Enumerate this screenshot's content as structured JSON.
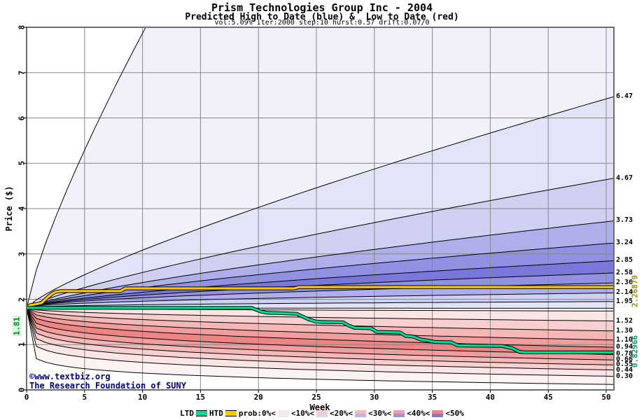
{
  "title": {
    "line1": "Prism Technologies Group Inc - 2004",
    "line2": "Predicted High to Date (blue) &  Low to Date (red)",
    "line3": "vol:5.09% iter:2000 step:10 hurst:0.57 drift:0.07/0"
  },
  "x_axis": {
    "label": "Week",
    "ticks": [
      "0",
      "5",
      "10",
      "15",
      "20",
      "25",
      "30",
      "35",
      "40",
      "45",
      "50"
    ],
    "min": 0,
    "max": 50
  },
  "y_axis": {
    "label": "Price ($)",
    "ticks": [
      "0",
      "1",
      "2",
      "3",
      "4",
      "5",
      "6",
      "7",
      "8"
    ],
    "min": 0,
    "max": 8
  },
  "annotations": {
    "start_price": "1.81",
    "htd_final": "2.26879",
    "ltd_final": "0.82966"
  },
  "footer": {
    "line1": "©www.textbiz.org",
    "line2": "The Research Foundation of SUNY"
  },
  "legend": {
    "ltd": "LTD",
    "htd": "HTD",
    "prob_labels": [
      "prob:0%<",
      "<10%<",
      "<20%<",
      "<30%<",
      "<40%<",
      "<50%"
    ],
    "swatch_colors": [
      {
        "red": "#fbe8e8",
        "blue": "#ebebf9"
      },
      {
        "red": "#f8d2d2",
        "blue": "#d6d6f4"
      },
      {
        "red": "#f5baba",
        "blue": "#b6b6ee"
      },
      {
        "red": "#f1a0a0",
        "blue": "#9696e4"
      },
      {
        "red": "#ee8686",
        "blue": "#7a7adc"
      }
    ]
  },
  "colors": {
    "htd_line": "#ffc800",
    "ltd_line": "#00dc96",
    "htd_label": "#a08c00",
    "ltd_label": "#009a64",
    "start_label": "#007c3c",
    "start_label_bg": "#d8f6d8",
    "grid": "#878787",
    "frame": "#6e6e6e",
    "boundary": "#000000",
    "footer_color": "#000080"
  },
  "chart_data": {
    "type": "area",
    "description": "Monte Carlo fan chart: percentile bands of predicted high-to-date (blue, above start) and low-to-date (red, below start) with actual HTD (yellow) and LTD (green) step lines",
    "start_price": 1.81,
    "x_range_weeks": [
      0,
      50
    ],
    "y_range_price": [
      0,
      8
    ],
    "upper_boundaries": [
      {
        "final": 24.0,
        "exp": 0.8,
        "label": ""
      },
      {
        "final": 6.47,
        "exp": 0.8,
        "label": "6.47"
      },
      {
        "final": 4.67,
        "exp": 0.8,
        "label": "4.67"
      },
      {
        "final": 3.73,
        "exp": 0.76,
        "label": "3.73"
      },
      {
        "final": 3.24,
        "exp": 0.72,
        "label": "3.24"
      },
      {
        "final": 2.85,
        "exp": 0.68,
        "label": "2.85"
      },
      {
        "final": 2.58,
        "exp": 0.62,
        "label": "2.58"
      },
      {
        "final": 2.36,
        "exp": 0.56,
        "label": "2.36"
      },
      {
        "final": 2.14,
        "exp": 0.5,
        "label": "2.14"
      },
      {
        "final": 1.95,
        "exp": 0.44,
        "label": "1.95"
      },
      {
        "final": 1.8,
        "exp": 0.4,
        "label": ""
      }
    ],
    "upper_band_colors": [
      "#f1f1fb",
      "#e3e3f7",
      "#cfcff2",
      "#aeaeea",
      "#9191e3",
      "#7878dc",
      "#9191e3",
      "#aeaeea",
      "#cfcff2",
      "#e3e3f7"
    ],
    "lower_boundaries": [
      {
        "final": 1.74,
        "exp": 0.5,
        "label": ""
      },
      {
        "final": 1.52,
        "exp": 0.46,
        "label": "1.52"
      },
      {
        "final": 1.3,
        "exp": 0.42,
        "label": "1.30"
      },
      {
        "final": 1.1,
        "exp": 0.37,
        "label": "1.10"
      },
      {
        "final": 0.94,
        "exp": 0.32,
        "label": "0.94"
      },
      {
        "final": 0.78,
        "exp": 0.27,
        "label": "0.78"
      },
      {
        "final": 0.66,
        "exp": 0.23,
        "label": "0.66"
      },
      {
        "final": 0.55,
        "exp": 0.2,
        "label": "0.55"
      },
      {
        "final": 0.44,
        "exp": 0.17,
        "label": "0.44"
      },
      {
        "final": 0.3,
        "exp": 0.14,
        "label": "0.30"
      },
      {
        "final": 0.12,
        "exp": 0.1,
        "label": ""
      }
    ],
    "lower_band_colors": [
      "#fbe4e4",
      "#f8cfcf",
      "#f5b6b6",
      "#f19d9d",
      "#ee8585",
      "#f19d9d",
      "#f5b6b6",
      "#f8cfcf",
      "#fbe4e4",
      "#fdf2f2"
    ],
    "htd_steps": [
      [
        0,
        1.81
      ],
      [
        0.3,
        1.87
      ],
      [
        0.8,
        1.89
      ],
      [
        1.3,
        1.92
      ],
      [
        1.8,
        2.04
      ],
      [
        2.2,
        2.12
      ],
      [
        2.5,
        2.16
      ],
      [
        3.0,
        2.18
      ],
      [
        8.1,
        2.18
      ],
      [
        8.5,
        2.24
      ],
      [
        23.1,
        2.24
      ],
      [
        23.5,
        2.269
      ],
      [
        50.6,
        2.269
      ]
    ],
    "ltd_steps": [
      [
        0,
        1.81
      ],
      [
        19.4,
        1.81
      ],
      [
        19.8,
        1.77
      ],
      [
        20.3,
        1.72
      ],
      [
        20.8,
        1.7
      ],
      [
        23.3,
        1.68
      ],
      [
        23.8,
        1.62
      ],
      [
        24.3,
        1.56
      ],
      [
        24.9,
        1.51
      ],
      [
        25.4,
        1.5
      ],
      [
        27.3,
        1.49
      ],
      [
        27.8,
        1.42
      ],
      [
        28.3,
        1.37
      ],
      [
        29.7,
        1.36
      ],
      [
        30.2,
        1.28
      ],
      [
        32.2,
        1.27
      ],
      [
        32.7,
        1.19
      ],
      [
        33.3,
        1.18
      ],
      [
        34.0,
        1.11
      ],
      [
        34.6,
        1.09
      ],
      [
        35.2,
        1.06
      ],
      [
        36.6,
        1.05
      ],
      [
        37.2,
        0.98
      ],
      [
        41.0,
        0.97
      ],
      [
        41.9,
        0.92
      ],
      [
        42.5,
        0.84
      ],
      [
        43.0,
        0.83
      ],
      [
        50.6,
        0.83
      ]
    ]
  }
}
